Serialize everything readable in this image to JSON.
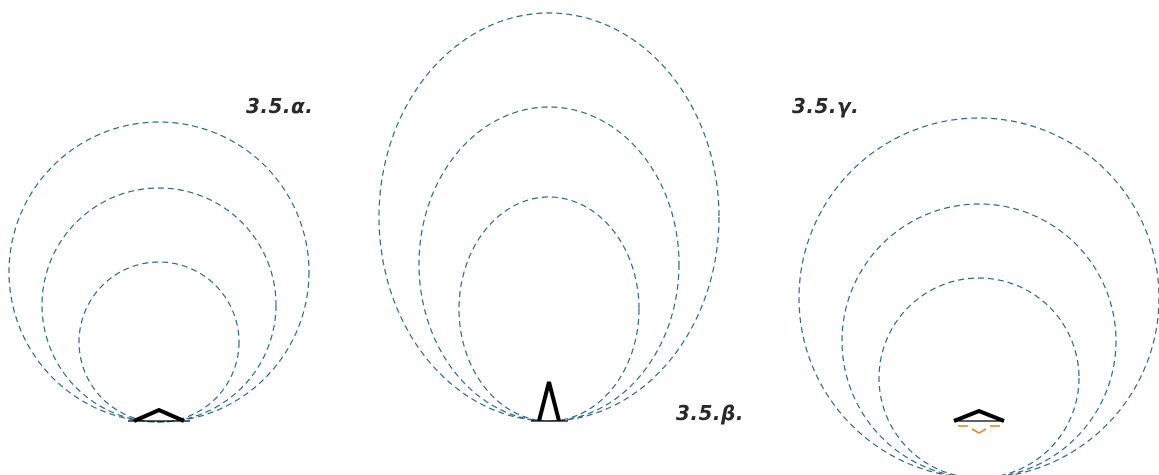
{
  "panels": {
    "a": {
      "label": "3.5.α."
    },
    "b": {
      "label": "3.5.β."
    },
    "c": {
      "label": "3.5.γ."
    }
  },
  "colors": {
    "dashed_circle": "#2b6c8a",
    "glyph": "#000000",
    "accent": "#e08a2a",
    "background": "#ffffff"
  }
}
